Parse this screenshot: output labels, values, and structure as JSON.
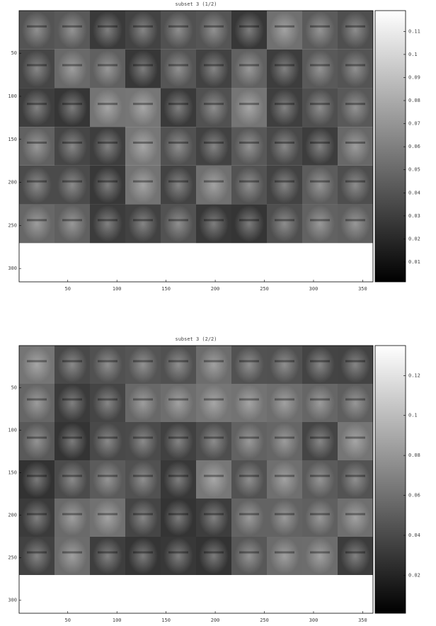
{
  "chart_data": [
    {
      "type": "image",
      "title": "subset 3 (1/2)",
      "xlim": [
        0.5,
        360.5
      ],
      "ylim": [
        0.5,
        315.5
      ],
      "xticks": [
        50,
        100,
        150,
        200,
        250,
        300,
        350
      ],
      "yticks": [
        50,
        100,
        150,
        200,
        250,
        300
      ],
      "colorbar": {
        "clim": [
          0.0014,
          0.119
        ],
        "ticks": [
          0.01,
          0.02,
          0.03,
          0.04,
          0.05,
          0.06,
          0.07,
          0.08,
          0.09,
          0.1,
          0.11
        ]
      }
    },
    {
      "type": "image",
      "title": "subset 3 (2/2)",
      "xlim": [
        0.5,
        360.5
      ],
      "ylim": [
        0.5,
        315.5
      ],
      "xticks": [
        50,
        100,
        150,
        200,
        250,
        300,
        350
      ],
      "yticks": [
        50,
        100,
        150,
        200,
        250,
        300
      ],
      "colorbar": {
        "clim": [
          0.001,
          0.135
        ],
        "ticks": [
          0.02,
          0.04,
          0.06,
          0.08,
          0.1,
          0.12
        ]
      }
    }
  ]
}
